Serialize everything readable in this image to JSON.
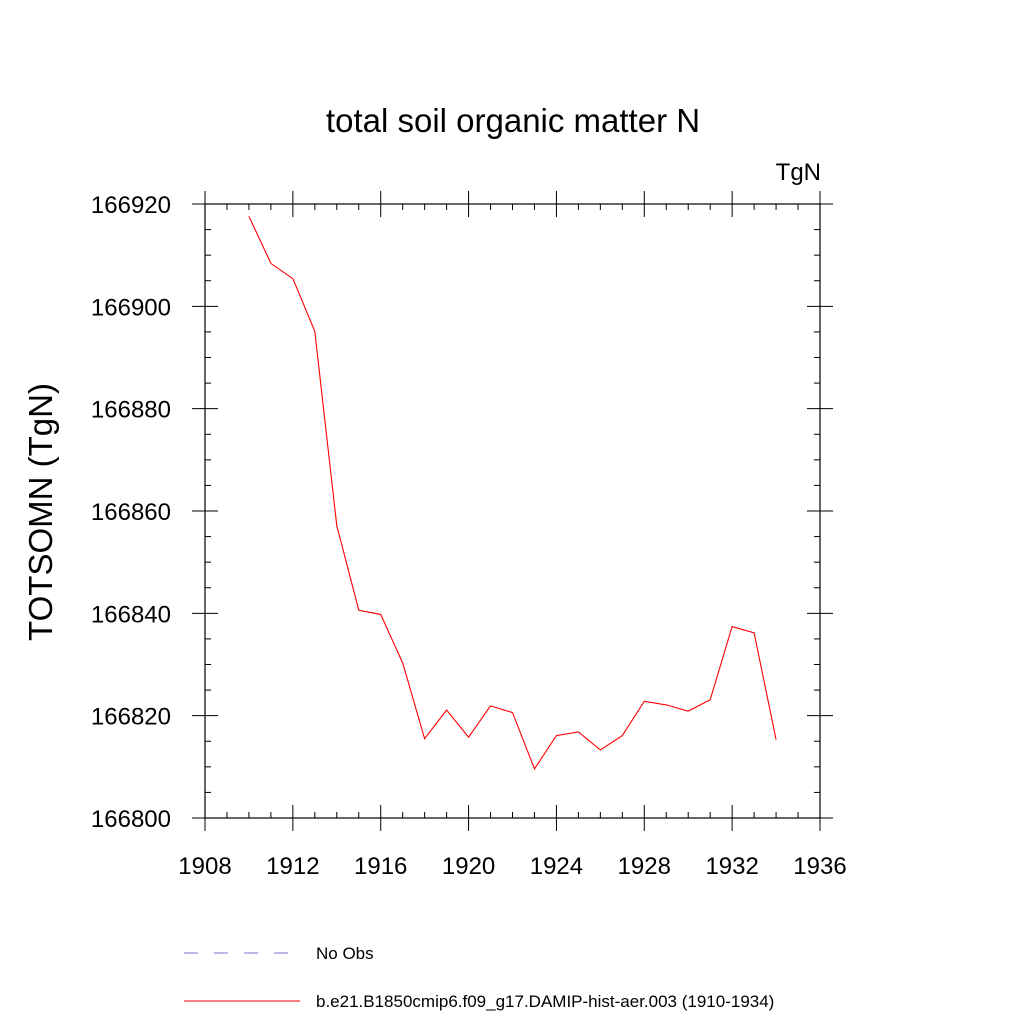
{
  "chart_data": {
    "type": "line",
    "title": "total soil organic matter N",
    "units_label": "TgN",
    "ylabel": "TOTSOMN  (TgN)",
    "xlabel": "",
    "xlim": [
      1908,
      1936
    ],
    "ylim": [
      166800,
      166920
    ],
    "x_ticks": [
      1908,
      1912,
      1916,
      1920,
      1924,
      1928,
      1932,
      1936
    ],
    "y_ticks": [
      166800,
      166820,
      166840,
      166860,
      166880,
      166900,
      166920
    ],
    "x_tick_labels": [
      "1908",
      "1912",
      "1916",
      "1920",
      "1924",
      "1928",
      "1932",
      "1936"
    ],
    "y_tick_labels": [
      "166800",
      "166820",
      "166840",
      "166860",
      "166880",
      "166900",
      "166920"
    ],
    "grid": false,
    "legend_position": "bottom",
    "series": [
      {
        "name": "b.e21.B1850cmip6.f09_g17.DAMIP-hist-aer.003 (1910-1934)",
        "color": "#ff0000",
        "dash": "solid",
        "x": [
          1910,
          1911,
          1912,
          1913,
          1914,
          1915,
          1916,
          1917,
          1918,
          1919,
          1920,
          1921,
          1922,
          1923,
          1924,
          1925,
          1926,
          1927,
          1928,
          1929,
          1930,
          1931,
          1932,
          1933,
          1934
        ],
        "y": [
          166917.6,
          166908.4,
          166905.4,
          166895.1,
          166857.1,
          166840.6,
          166839.8,
          166830.3,
          166815.5,
          166821.1,
          166815.8,
          166821.9,
          166820.6,
          166809.6,
          166816.1,
          166816.8,
          166813.3,
          166816.1,
          166822.8,
          166822.1,
          166820.9,
          166823.1,
          166837.4,
          166836.2,
          166815.3
        ]
      }
    ],
    "legend": [
      {
        "label": "No Obs",
        "color": "#7b6fd6",
        "dash": "dashed"
      },
      {
        "label": "b.e21.B1850cmip6.f09_g17.DAMIP-hist-aer.003 (1910-1934)",
        "color": "#ff0000",
        "dash": "solid"
      }
    ]
  }
}
